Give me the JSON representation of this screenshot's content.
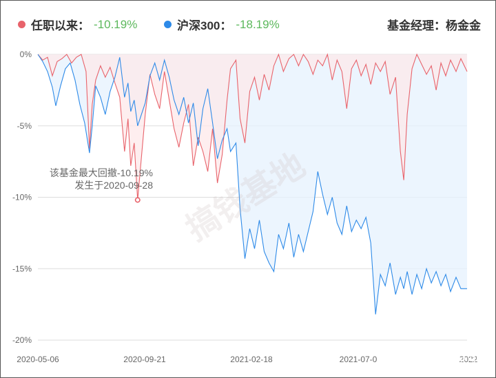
{
  "legend": {
    "fund": {
      "label": "任职以来：",
      "value": "-10.19%",
      "color": "#e8636b"
    },
    "index": {
      "label": "沪深300：",
      "value": "-18.19%",
      "color": "#2d8ae8"
    },
    "manager": "基金经理：杨金金"
  },
  "annotation": {
    "line1": "该基金最大回撤-10.19%",
    "line2": "发生于2020-09-28"
  },
  "watermark": {
    "center": "搞钱基地",
    "corner": "知乎 @搞钱基地"
  },
  "chart_data": {
    "type": "area",
    "y_unit": "%",
    "ylim": [
      -20,
      0
    ],
    "y_ticks": [
      "0%",
      "-5%",
      "-10%",
      "-15%",
      "-20%"
    ],
    "y_tick_values": [
      0,
      -5,
      -10,
      -15,
      -20
    ],
    "x_ticks": [
      "2020-05-06",
      "2020-09-21",
      "2021-02-18",
      "2021-07-0",
      "2022"
    ],
    "x_range": [
      "2020-05-06",
      "2022-01-20"
    ],
    "grid": true,
    "max_drawdown_point": {
      "date": "2020-09-28",
      "value": -10.19
    },
    "series": [
      {
        "name": "任职以来",
        "color": "#e8636b",
        "fill": "#fde8ea",
        "points": [
          [
            "2020-05-06",
            0
          ],
          [
            "2020-05-13",
            -0.4
          ],
          [
            "2020-05-20",
            -0.2
          ],
          [
            "2020-05-27",
            -1.5
          ],
          [
            "2020-06-03",
            -0.5
          ],
          [
            "2020-06-10",
            -0.3
          ],
          [
            "2020-06-17",
            0
          ],
          [
            "2020-06-24",
            -0.6
          ],
          [
            "2020-07-01",
            -0.2
          ],
          [
            "2020-07-08",
            0
          ],
          [
            "2020-07-15",
            -1.2
          ],
          [
            "2020-07-20",
            -6.6
          ],
          [
            "2020-07-24",
            -3.5
          ],
          [
            "2020-07-29",
            -1.8
          ],
          [
            "2020-08-05",
            -0.8
          ],
          [
            "2020-08-12",
            -1.6
          ],
          [
            "2020-08-19",
            -0.9
          ],
          [
            "2020-08-26",
            -2.0
          ],
          [
            "2020-09-02",
            -3.0
          ],
          [
            "2020-09-09",
            -6.8
          ],
          [
            "2020-09-14",
            -4.5
          ],
          [
            "2020-09-18",
            -7.8
          ],
          [
            "2020-09-23",
            -6.2
          ],
          [
            "2020-09-28",
            -10.19
          ],
          [
            "2020-10-09",
            -4.2
          ],
          [
            "2020-10-16",
            -1.4
          ],
          [
            "2020-10-23",
            -2.8
          ],
          [
            "2020-10-30",
            -3.8
          ],
          [
            "2020-11-06",
            -1.2
          ],
          [
            "2020-11-13",
            -3.2
          ],
          [
            "2020-11-20",
            -5.2
          ],
          [
            "2020-11-27",
            -6.5
          ],
          [
            "2020-12-04",
            -4.8
          ],
          [
            "2020-12-11",
            -3.5
          ],
          [
            "2020-12-18",
            -7.8
          ],
          [
            "2020-12-25",
            -5.8
          ],
          [
            "2021-01-01",
            -6.8
          ],
          [
            "2021-01-08",
            -8.2
          ],
          [
            "2021-01-15",
            -5.2
          ],
          [
            "2021-01-22",
            -9.0
          ],
          [
            "2021-01-29",
            -7.0
          ],
          [
            "2021-02-05",
            -3.2
          ],
          [
            "2021-02-10",
            -1.0
          ],
          [
            "2021-02-18",
            -0.4
          ],
          [
            "2021-02-24",
            -4.5
          ],
          [
            "2021-03-03",
            -6.2
          ],
          [
            "2021-03-10",
            -2.6
          ],
          [
            "2021-03-17",
            -1.6
          ],
          [
            "2021-03-24",
            -3.2
          ],
          [
            "2021-03-31",
            -1.4
          ],
          [
            "2021-04-07",
            -2.5
          ],
          [
            "2021-04-14",
            -0.8
          ],
          [
            "2021-04-21",
            0
          ],
          [
            "2021-04-28",
            -1.2
          ],
          [
            "2021-05-06",
            -0.3
          ],
          [
            "2021-05-13",
            0
          ],
          [
            "2021-05-20",
            -0.8
          ],
          [
            "2021-05-27",
            0
          ],
          [
            "2021-06-03",
            -0.5
          ],
          [
            "2021-06-10",
            -1.4
          ],
          [
            "2021-06-17",
            -0.4
          ],
          [
            "2021-06-24",
            -0.8
          ],
          [
            "2021-07-01",
            0
          ],
          [
            "2021-07-08",
            -1.8
          ],
          [
            "2021-07-15",
            -0.4
          ],
          [
            "2021-07-22",
            -1.2
          ],
          [
            "2021-07-29",
            -3.8
          ],
          [
            "2021-08-05",
            -1.0
          ],
          [
            "2021-08-12",
            -0.4
          ],
          [
            "2021-08-19",
            -1.5
          ],
          [
            "2021-08-26",
            -0.7
          ],
          [
            "2021-09-02",
            -2.1
          ],
          [
            "2021-09-09",
            -0.6
          ],
          [
            "2021-09-16",
            -1.2
          ],
          [
            "2021-09-23",
            -0.5
          ],
          [
            "2021-09-30",
            -2.8
          ],
          [
            "2021-10-08",
            -1.6
          ],
          [
            "2021-10-15",
            -6.8
          ],
          [
            "2021-10-20",
            -8.8
          ],
          [
            "2021-10-25",
            -4.2
          ],
          [
            "2021-11-01",
            -1.0
          ],
          [
            "2021-11-08",
            0
          ],
          [
            "2021-11-15",
            -0.7
          ],
          [
            "2021-11-22",
            -1.4
          ],
          [
            "2021-11-29",
            -0.8
          ],
          [
            "2021-12-06",
            -2.5
          ],
          [
            "2021-12-13",
            -0.6
          ],
          [
            "2021-12-20",
            -1.5
          ],
          [
            "2021-12-27",
            -0.4
          ],
          [
            "2022-01-04",
            -1.2
          ],
          [
            "2022-01-11",
            -0.3
          ],
          [
            "2022-01-20",
            -1.2
          ]
        ]
      },
      {
        "name": "沪深300",
        "color": "#2d8ae8",
        "fill": "#e6f1fd",
        "points": [
          [
            "2020-05-06",
            0
          ],
          [
            "2020-05-13",
            -0.5
          ],
          [
            "2020-05-20",
            -1.2
          ],
          [
            "2020-05-27",
            -2.3
          ],
          [
            "2020-06-01",
            -3.6
          ],
          [
            "2020-06-08",
            -2.2
          ],
          [
            "2020-06-15",
            -1.0
          ],
          [
            "2020-06-22",
            -0.6
          ],
          [
            "2020-06-29",
            -1.8
          ],
          [
            "2020-07-06",
            -3.5
          ],
          [
            "2020-07-13",
            -4.8
          ],
          [
            "2020-07-20",
            -6.9
          ],
          [
            "2020-07-24",
            -5.0
          ],
          [
            "2020-07-29",
            -2.2
          ],
          [
            "2020-08-05",
            -3.0
          ],
          [
            "2020-08-12",
            -4.2
          ],
          [
            "2020-08-19",
            -2.6
          ],
          [
            "2020-08-26",
            -1.6
          ],
          [
            "2020-09-02",
            -0.2
          ],
          [
            "2020-09-09",
            -3.0
          ],
          [
            "2020-09-14",
            -2.0
          ],
          [
            "2020-09-18",
            -4.0
          ],
          [
            "2020-09-23",
            -3.2
          ],
          [
            "2020-09-28",
            -5.0
          ],
          [
            "2020-10-09",
            -3.4
          ],
          [
            "2020-10-16",
            -1.5
          ],
          [
            "2020-10-23",
            -0.6
          ],
          [
            "2020-10-30",
            -1.8
          ],
          [
            "2020-11-06",
            -0.4
          ],
          [
            "2020-11-13",
            -1.6
          ],
          [
            "2020-11-20",
            -3.2
          ],
          [
            "2020-11-27",
            -4.2
          ],
          [
            "2020-12-04",
            -3.0
          ],
          [
            "2020-12-11",
            -4.8
          ],
          [
            "2020-12-18",
            -3.4
          ],
          [
            "2020-12-25",
            -6.4
          ],
          [
            "2021-01-01",
            -3.8
          ],
          [
            "2021-01-08",
            -2.4
          ],
          [
            "2021-01-15",
            -4.8
          ],
          [
            "2021-01-22",
            -7.3
          ],
          [
            "2021-01-29",
            -6.0
          ],
          [
            "2021-02-05",
            -5.2
          ],
          [
            "2021-02-10",
            -6.8
          ],
          [
            "2021-02-18",
            -6.2
          ],
          [
            "2021-02-24",
            -10.8
          ],
          [
            "2021-03-03",
            -14.3
          ],
          [
            "2021-03-10",
            -12.2
          ],
          [
            "2021-03-17",
            -13.6
          ],
          [
            "2021-03-24",
            -11.6
          ],
          [
            "2021-03-31",
            -13.8
          ],
          [
            "2021-04-07",
            -14.6
          ],
          [
            "2021-04-14",
            -15.2
          ],
          [
            "2021-04-21",
            -12.6
          ],
          [
            "2021-04-28",
            -13.6
          ],
          [
            "2021-05-06",
            -11.8
          ],
          [
            "2021-05-13",
            -14.2
          ],
          [
            "2021-05-20",
            -12.6
          ],
          [
            "2021-05-27",
            -13.8
          ],
          [
            "2021-06-03",
            -12.4
          ],
          [
            "2021-06-10",
            -11.0
          ],
          [
            "2021-06-17",
            -8.2
          ],
          [
            "2021-06-24",
            -9.8
          ],
          [
            "2021-07-01",
            -11.2
          ],
          [
            "2021-07-08",
            -10.0
          ],
          [
            "2021-07-15",
            -11.8
          ],
          [
            "2021-07-22",
            -12.6
          ],
          [
            "2021-07-29",
            -10.6
          ],
          [
            "2021-08-05",
            -12.4
          ],
          [
            "2021-08-12",
            -11.6
          ],
          [
            "2021-08-19",
            -12.2
          ],
          [
            "2021-08-26",
            -11.4
          ],
          [
            "2021-09-02",
            -13.2
          ],
          [
            "2021-09-09",
            -18.2
          ],
          [
            "2021-09-16",
            -15.4
          ],
          [
            "2021-09-23",
            -16.2
          ],
          [
            "2021-09-30",
            -14.6
          ],
          [
            "2021-10-08",
            -16.8
          ],
          [
            "2021-10-15",
            -15.6
          ],
          [
            "2021-10-20",
            -16.4
          ],
          [
            "2021-10-25",
            -15.2
          ],
          [
            "2021-11-01",
            -16.8
          ],
          [
            "2021-11-08",
            -15.4
          ],
          [
            "2021-11-15",
            -16.4
          ],
          [
            "2021-11-22",
            -15.0
          ],
          [
            "2021-11-29",
            -16.0
          ],
          [
            "2021-12-06",
            -15.2
          ],
          [
            "2021-12-13",
            -16.2
          ],
          [
            "2021-12-20",
            -15.4
          ],
          [
            "2021-12-27",
            -16.6
          ],
          [
            "2022-01-04",
            -15.6
          ],
          [
            "2022-01-11",
            -16.4
          ],
          [
            "2022-01-20",
            -16.4
          ]
        ]
      }
    ]
  }
}
